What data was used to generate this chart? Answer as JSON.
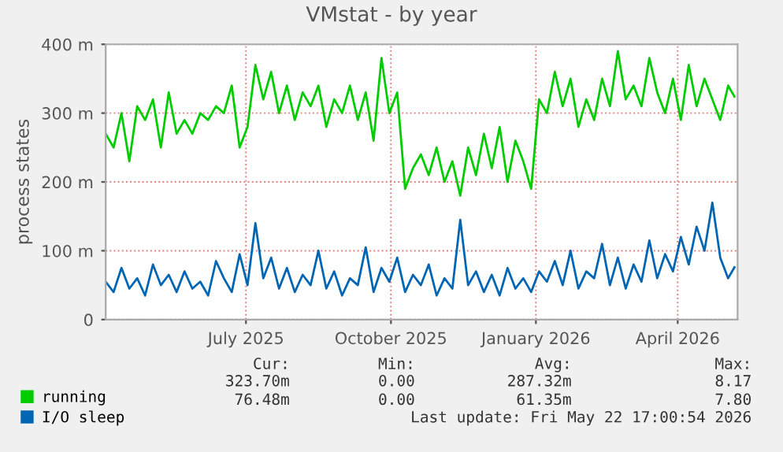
{
  "chart_data": {
    "type": "line",
    "title": "VMstat - by year",
    "ylabel": "process states",
    "x": [
      "2025-04-18",
      "2025-04-23",
      "2025-04-28",
      "2025-05-03",
      "2025-05-08",
      "2025-05-13",
      "2025-05-18",
      "2025-05-23",
      "2025-05-28",
      "2025-06-02",
      "2025-06-07",
      "2025-06-12",
      "2025-06-17",
      "2025-06-22",
      "2025-06-27",
      "2025-07-02",
      "2025-07-07",
      "2025-07-12",
      "2025-07-17",
      "2025-07-22",
      "2025-07-27",
      "2025-08-01",
      "2025-08-06",
      "2025-08-11",
      "2025-08-16",
      "2025-08-21",
      "2025-08-26",
      "2025-08-31",
      "2025-09-05",
      "2025-09-10",
      "2025-09-15",
      "2025-09-20",
      "2025-09-25",
      "2025-09-30",
      "2025-10-05",
      "2025-10-10",
      "2025-10-15",
      "2025-10-20",
      "2025-10-25",
      "2025-10-30",
      "2025-11-04",
      "2025-11-09",
      "2025-11-14",
      "2025-11-19",
      "2025-11-24",
      "2025-11-29",
      "2025-12-04",
      "2025-12-09",
      "2025-12-14",
      "2025-12-19",
      "2025-12-24",
      "2025-12-29",
      "2026-01-03",
      "2026-01-08",
      "2026-01-13",
      "2026-01-18",
      "2026-01-23",
      "2026-01-28",
      "2026-02-02",
      "2026-02-07",
      "2026-02-12",
      "2026-02-17",
      "2026-02-22",
      "2026-02-27",
      "2026-03-04",
      "2026-03-09",
      "2026-03-14",
      "2026-03-19",
      "2026-03-24",
      "2026-03-29",
      "2026-04-03",
      "2026-04-08",
      "2026-04-13",
      "2026-04-18",
      "2026-04-23",
      "2026-04-28",
      "2026-05-03",
      "2026-05-08",
      "2026-05-13",
      "2026-05-18",
      "2026-05-22"
    ],
    "series": [
      {
        "name": "running",
        "color": "#00cc00",
        "values": [
          270,
          250,
          300,
          230,
          310,
          290,
          320,
          250,
          330,
          270,
          290,
          270,
          300,
          290,
          310,
          300,
          340,
          250,
          280,
          370,
          320,
          360,
          300,
          340,
          290,
          330,
          310,
          340,
          280,
          320,
          300,
          340,
          290,
          330,
          260,
          380,
          300,
          330,
          190,
          220,
          240,
          210,
          250,
          200,
          230,
          180,
          250,
          210,
          270,
          220,
          280,
          200,
          260,
          230,
          190,
          320,
          300,
          360,
          310,
          350,
          280,
          320,
          290,
          350,
          310,
          390,
          320,
          340,
          310,
          380,
          330,
          300,
          350,
          290,
          370,
          310,
          350,
          320,
          290,
          340,
          324
        ]
      },
      {
        "name": "I/O sleep",
        "color": "#0066b3",
        "values": [
          55,
          40,
          75,
          45,
          60,
          35,
          80,
          50,
          65,
          40,
          70,
          45,
          55,
          35,
          85,
          60,
          40,
          95,
          50,
          140,
          60,
          90,
          45,
          75,
          40,
          65,
          50,
          100,
          45,
          70,
          35,
          60,
          50,
          105,
          40,
          75,
          55,
          90,
          40,
          65,
          50,
          80,
          35,
          60,
          45,
          145,
          50,
          70,
          40,
          65,
          35,
          75,
          45,
          60,
          40,
          70,
          55,
          85,
          50,
          100,
          45,
          70,
          60,
          110,
          50,
          90,
          45,
          80,
          55,
          115,
          60,
          95,
          70,
          120,
          80,
          135,
          100,
          170,
          90,
          60,
          76
        ]
      }
    ],
    "xlim": [
      "2025-04-18",
      "2026-05-24"
    ],
    "xticks": [
      {
        "value": "2025-07-16",
        "label": "July 2025"
      },
      {
        "value": "2025-10-16",
        "label": "October 2025"
      },
      {
        "value": "2026-01-16",
        "label": "January 2026"
      },
      {
        "value": "2026-04-16",
        "label": "April 2026"
      }
    ],
    "ylim": [
      0,
      400
    ],
    "yticks": [
      {
        "value": 0,
        "label": "0"
      },
      {
        "value": 100,
        "label": "100 m"
      },
      {
        "value": 200,
        "label": "200 m"
      },
      {
        "value": 300,
        "label": "300 m"
      },
      {
        "value": 400,
        "label": "400 m"
      }
    ],
    "grid": true,
    "legend": "bottom left",
    "line_style": "solid",
    "marker": "none",
    "annotations": [
      "Cur:",
      "Min:",
      "Avg:",
      "Max:",
      "323.70m",
      "0.00",
      "287.32m",
      "8.17",
      "76.48m",
      "0.00",
      "61.35m",
      "7.80",
      "Last update: Fri May 22 17:00:54 2026"
    ]
  }
}
